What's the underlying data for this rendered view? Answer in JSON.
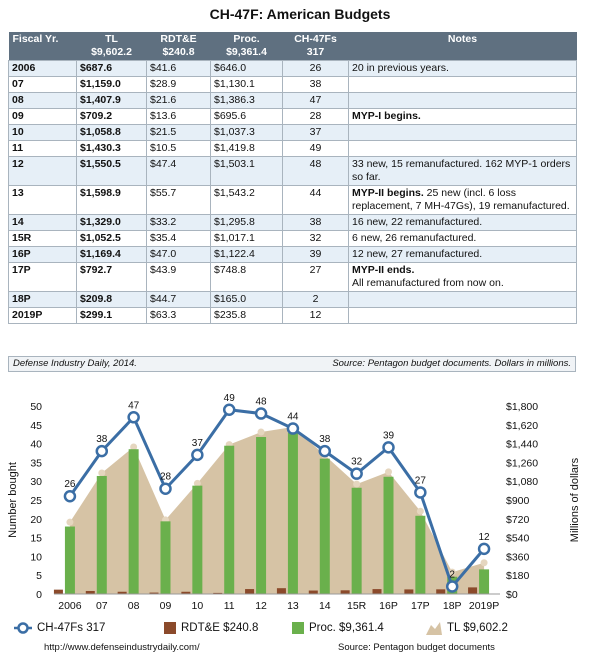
{
  "title": "CH-47F: American Budgets",
  "table": {
    "headers": [
      {
        "line1": "Fiscal Yr.",
        "line2": ""
      },
      {
        "line1": "TL",
        "line2": "$9,602.2"
      },
      {
        "line1": "RDT&E",
        "line2": "$240.8"
      },
      {
        "line1": "Proc.",
        "line2": "$9,361.4"
      },
      {
        "line1": "CH-47Fs",
        "line2": "317"
      },
      {
        "line1": "Notes",
        "line2": ""
      }
    ],
    "rows": [
      {
        "fy": "2006",
        "tl": "$687.6",
        "rdte": "$41.6",
        "proc": "$646.0",
        "units": "26",
        "note": "20 in previous years.",
        "note_bold": "",
        "note_rest": ""
      },
      {
        "fy": "07",
        "tl": "$1,159.0",
        "rdte": "$28.9",
        "proc": "$1,130.1",
        "units": "38",
        "note": "",
        "note_bold": "",
        "note_rest": ""
      },
      {
        "fy": "08",
        "tl": "$1,407.9",
        "rdte": "$21.6",
        "proc": "$1,386.3",
        "units": "47",
        "note": "",
        "note_bold": "",
        "note_rest": ""
      },
      {
        "fy": "09",
        "tl": "$709.2",
        "rdte": "$13.6",
        "proc": "$695.6",
        "units": "28",
        "note": "",
        "note_bold": "MYP-I begins.",
        "note_rest": ""
      },
      {
        "fy": "10",
        "tl": "$1,058.8",
        "rdte": "$21.5",
        "proc": "$1,037.3",
        "units": "37",
        "note": "",
        "note_bold": "",
        "note_rest": ""
      },
      {
        "fy": "11",
        "tl": "$1,430.3",
        "rdte": "$10.5",
        "proc": "$1,419.8",
        "units": "49",
        "note": "",
        "note_bold": "",
        "note_rest": ""
      },
      {
        "fy": "12",
        "tl": "$1,550.5",
        "rdte": "$47.4",
        "proc": "$1,503.1",
        "units": "48",
        "note": "33 new, 15 remanufactured. 162 MYP-1 orders so far.",
        "note_bold": "",
        "note_rest": ""
      },
      {
        "fy": "13",
        "tl": "$1,598.9",
        "rdte": "$55.7",
        "proc": "$1,543.2",
        "units": "44",
        "note": "",
        "note_bold": "MYP-II begins.",
        "note_rest": " 25 new (incl. 6 loss replacement, 7 MH-47Gs), 19 remanufactured."
      },
      {
        "fy": "14",
        "tl": "$1,329.0",
        "rdte": "$33.2",
        "proc": "$1,295.8",
        "units": "38",
        "note": "16 new, 22 remanufactured.",
        "note_bold": "",
        "note_rest": ""
      },
      {
        "fy": "15R",
        "tl": "$1,052.5",
        "rdte": "$35.4",
        "proc": "$1,017.1",
        "units": "32",
        "note": "6 new, 26 remanufactured.",
        "note_bold": "",
        "note_rest": ""
      },
      {
        "fy": "16P",
        "tl": "$1,169.4",
        "rdte": "$47.0",
        "proc": "$1,122.4",
        "units": "39",
        "note": "12 new, 27 remanufactured.",
        "note_bold": "",
        "note_rest": ""
      },
      {
        "fy": "17P",
        "tl": "$792.7",
        "rdte": "$43.9",
        "proc": "$748.8",
        "units": "27",
        "note": "",
        "note_bold": "MYP-II ends.",
        "note_rest": "All remanufactured from now on."
      },
      {
        "fy": "18P",
        "tl": "$209.8",
        "rdte": "$44.7",
        "proc": "$165.0",
        "units": "2",
        "note": "",
        "note_bold": "",
        "note_rest": ""
      },
      {
        "fy": "2019P",
        "tl": "$299.1",
        "rdte": "$63.3",
        "proc": "$235.8",
        "units": "12",
        "note": "",
        "note_bold": "",
        "note_rest": ""
      }
    ],
    "footer_left": "Defense Industry Daily, 2014.",
    "footer_right": "Source: Pentagon budget documents. Dollars in millions."
  },
  "chart_data": {
    "type": "bar",
    "categories": [
      "2006",
      "07",
      "08",
      "09",
      "10",
      "11",
      "12",
      "13",
      "14",
      "15R",
      "16P",
      "17P",
      "18P",
      "2019P"
    ],
    "series": [
      {
        "name": "TL $9,602.2",
        "kind": "area",
        "axis": "right",
        "color": "#d6c3a5",
        "values": [
          687.6,
          1159.0,
          1407.9,
          709.2,
          1058.8,
          1430.3,
          1550.5,
          1598.9,
          1329.0,
          1052.5,
          1169.4,
          792.7,
          209.8,
          299.1
        ]
      },
      {
        "name": "Proc. $9,361.4",
        "kind": "bar",
        "axis": "right",
        "color": "#6ab04c",
        "values": [
          646.0,
          1130.1,
          1386.3,
          695.6,
          1037.3,
          1419.8,
          1503.1,
          1543.2,
          1295.8,
          1017.1,
          1122.4,
          748.8,
          165.0,
          235.8
        ]
      },
      {
        "name": "RDT&E $240.8",
        "kind": "bar",
        "axis": "right",
        "color": "#8b4a2b",
        "values": [
          41.6,
          28.9,
          21.6,
          13.6,
          21.5,
          10.5,
          47.4,
          55.7,
          33.2,
          35.4,
          47.0,
          43.9,
          44.7,
          63.3
        ]
      },
      {
        "name": "CH-47Fs 317",
        "kind": "line",
        "axis": "left",
        "color": "#3b6ea5",
        "values": [
          26,
          38,
          47,
          28,
          37,
          49,
          48,
          44,
          38,
          32,
          39,
          27,
          2,
          12
        ]
      }
    ],
    "ylabel_left": "Number bought",
    "ylabel_right": "Millions of dollars",
    "ylim_left": [
      0,
      50
    ],
    "ylim_right": [
      0,
      1800
    ],
    "yticks_left": [
      "0",
      "5",
      "10",
      "15",
      "20",
      "25",
      "30",
      "35",
      "40",
      "45",
      "50"
    ],
    "yticks_right": [
      "$0",
      "$180",
      "$360",
      "$540",
      "$720",
      "$900",
      "$1,080",
      "$1,260",
      "$1,440",
      "$1,620",
      "$1,800"
    ],
    "grid": false,
    "legend_position": "bottom"
  },
  "legend": {
    "line": "CH-47Fs 317",
    "rdte": "RDT&E $240.8",
    "proc": "Proc. $9,361.4",
    "tl": "TL $9,602.2"
  },
  "credits": {
    "left": "http://www.defenseindustrydaily.com/",
    "right": "Source: Pentagon budget documents"
  }
}
